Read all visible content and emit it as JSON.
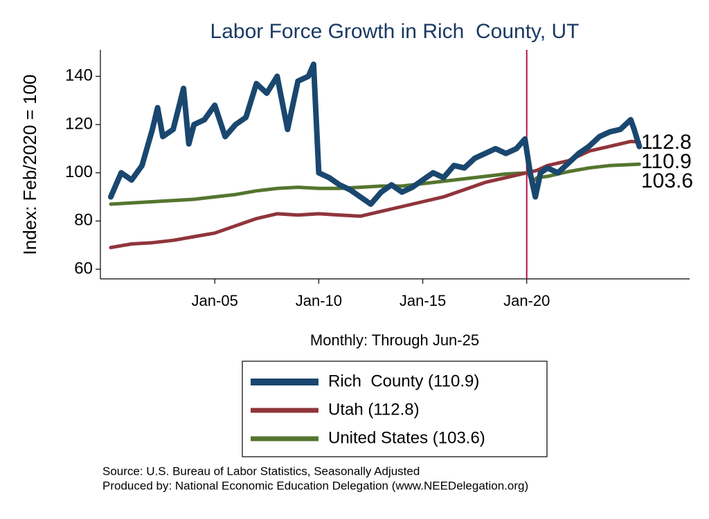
{
  "chart_data": {
    "type": "line",
    "title": "Labor Force Growth in Rich  County, UT",
    "ylabel": "Index: Feb/2020 = 100",
    "xlabel": "Monthly: Through Jun-25",
    "notes": [
      "Source: U.S. Bureau of Labor Statistics, Seasonally Adjusted",
      "Produced by: National Economic Education Delegation (www.NEEDelegation.org)"
    ],
    "xlim": [
      "1999-07",
      "2027-11"
    ],
    "xticks": [
      {
        "value": "2005-01",
        "label": "Jan-05"
      },
      {
        "value": "2010-01",
        "label": "Jan-10"
      },
      {
        "value": "2015-01",
        "label": "Jan-15"
      },
      {
        "value": "2020-01",
        "label": "Jan-20"
      }
    ],
    "ylim": [
      56,
      151
    ],
    "yticks": [
      60,
      80,
      100,
      120,
      140
    ],
    "vline": {
      "x": "2020-01",
      "color": "#b5123e"
    },
    "grid": false,
    "series": [
      {
        "name": "Rich  County (110.9)",
        "color": "#1a476f",
        "width": 8,
        "end_label": "110.9",
        "x": [
          "2000-01",
          "2000-07",
          "2001-01",
          "2001-07",
          "2002-01",
          "2002-04",
          "2002-07",
          "2003-01",
          "2003-07",
          "2003-10",
          "2004-01",
          "2004-07",
          "2005-01",
          "2005-07",
          "2006-01",
          "2006-07",
          "2007-01",
          "2007-07",
          "2008-01",
          "2008-07",
          "2009-01",
          "2009-07",
          "2009-10",
          "2010-01",
          "2010-07",
          "2011-01",
          "2011-07",
          "2012-01",
          "2012-07",
          "2013-01",
          "2013-07",
          "2014-01",
          "2014-07",
          "2015-01",
          "2015-07",
          "2016-01",
          "2016-07",
          "2017-01",
          "2017-07",
          "2018-01",
          "2018-07",
          "2019-01",
          "2019-07",
          "2019-12",
          "2020-03",
          "2020-06",
          "2020-09",
          "2021-01",
          "2021-07",
          "2022-01",
          "2022-07",
          "2023-01",
          "2023-07",
          "2024-01",
          "2024-07",
          "2025-01",
          "2025-03",
          "2025-06"
        ],
        "values": [
          90,
          100,
          97,
          103,
          118,
          127,
          115,
          118,
          135,
          112,
          120,
          122,
          128,
          115,
          120,
          123,
          137,
          133,
          140,
          118,
          138,
          140,
          145,
          100,
          98,
          95,
          93,
          90,
          87,
          92,
          95,
          92,
          94,
          97,
          100,
          98,
          103,
          102,
          106,
          108,
          110,
          108,
          110,
          114,
          100,
          90,
          100,
          102,
          100,
          104,
          108,
          111,
          115,
          117,
          118,
          122,
          118,
          110.9
        ]
      },
      {
        "name": "Utah (112.8)",
        "color": "#90353b",
        "width": 5,
        "end_label": "112.8",
        "x": [
          "2000-01",
          "2001-01",
          "2002-01",
          "2003-01",
          "2004-01",
          "2005-01",
          "2006-01",
          "2007-01",
          "2008-01",
          "2009-01",
          "2010-01",
          "2011-01",
          "2012-01",
          "2013-01",
          "2014-01",
          "2015-01",
          "2016-01",
          "2017-01",
          "2018-01",
          "2019-01",
          "2020-01",
          "2020-07",
          "2021-01",
          "2022-01",
          "2023-01",
          "2024-01",
          "2025-01",
          "2025-06"
        ],
        "values": [
          69,
          70.5,
          71,
          72,
          73.5,
          75,
          78,
          81,
          83,
          82.5,
          83,
          82.5,
          82,
          84,
          86,
          88,
          90,
          93,
          96,
          98,
          100,
          101,
          103,
          105,
          109,
          111,
          113,
          112.8
        ]
      },
      {
        "name": "United States (103.6)",
        "color": "#55752f",
        "width": 5,
        "end_label": "103.6",
        "x": [
          "2000-01",
          "2001-01",
          "2002-01",
          "2003-01",
          "2004-01",
          "2005-01",
          "2006-01",
          "2007-01",
          "2008-01",
          "2009-01",
          "2010-01",
          "2011-01",
          "2012-01",
          "2013-01",
          "2014-01",
          "2015-01",
          "2016-01",
          "2017-01",
          "2018-01",
          "2019-01",
          "2020-02",
          "2020-04",
          "2020-07",
          "2021-01",
          "2022-01",
          "2023-01",
          "2024-01",
          "2025-06"
        ],
        "values": [
          87,
          87.5,
          88,
          88.5,
          89,
          90,
          91,
          92.5,
          93.5,
          94,
          93.5,
          93.5,
          94,
          94.5,
          94.5,
          95.5,
          96.5,
          97.5,
          98.5,
          99.5,
          100,
          96,
          98,
          98.5,
          100.5,
          102,
          103,
          103.6
        ]
      }
    ]
  }
}
